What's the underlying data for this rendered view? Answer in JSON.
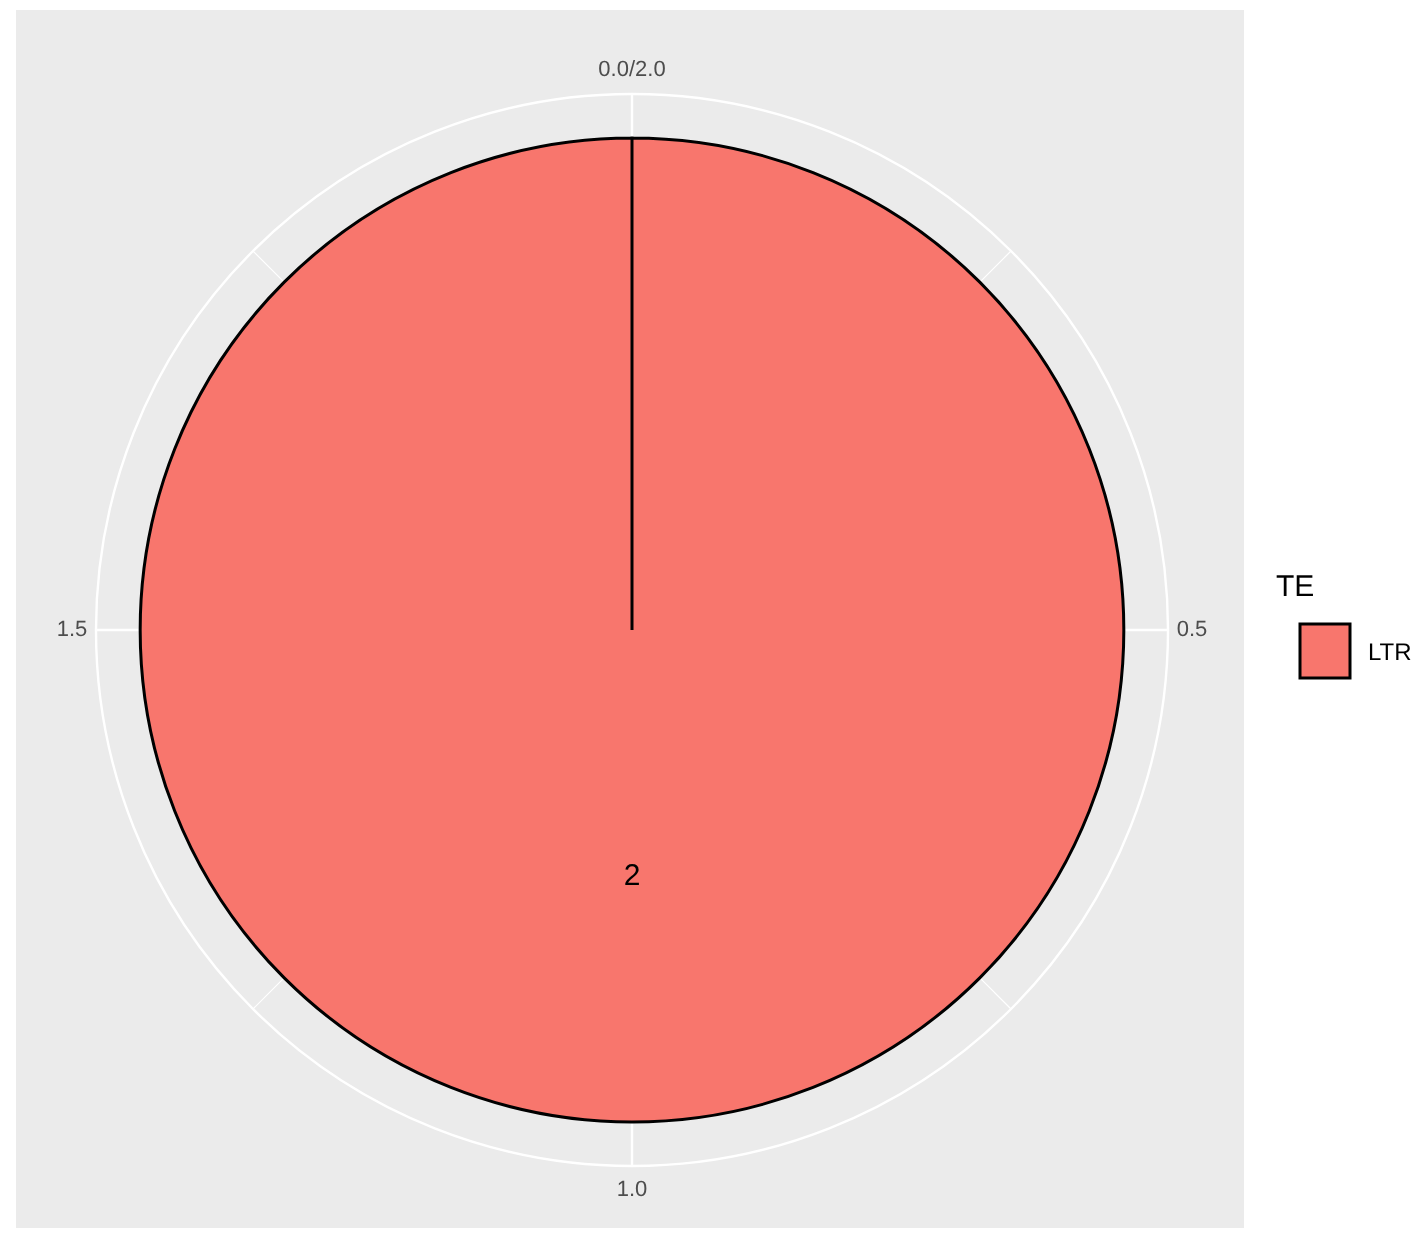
{
  "chart_data": {
    "type": "pie",
    "categories": [
      "LTR"
    ],
    "values": [
      2
    ],
    "colors": [
      "#f8766d"
    ],
    "data_labels": true,
    "legend": "right",
    "legend_title": "TE",
    "grid": true,
    "annotations": [
      "0.0/2.0",
      "0.5",
      "1.0",
      "1.5"
    ]
  }
}
